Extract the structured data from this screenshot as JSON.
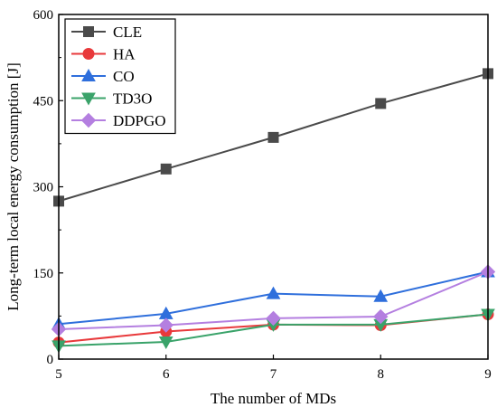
{
  "chart_data": {
    "type": "line",
    "xlabel": "The number of MDs",
    "ylabel": "Long-term local energy consumption [J]",
    "x": [
      5,
      6,
      7,
      8,
      9
    ],
    "xlim": [
      5,
      9
    ],
    "ylim": [
      0,
      600
    ],
    "x_ticks": [
      "5",
      "6",
      "7",
      "8",
      "9"
    ],
    "y_ticks": [
      "0",
      "150",
      "300",
      "450",
      "600"
    ],
    "grid": false,
    "legend_position": "top-left",
    "series": [
      {
        "name": "CLE",
        "color": "#4a4a4a",
        "marker": "square",
        "values": [
          275,
          331,
          386,
          445,
          497
        ]
      },
      {
        "name": "HA",
        "color": "#e8393b",
        "marker": "circle",
        "values": [
          29,
          48,
          60,
          59,
          78
        ]
      },
      {
        "name": "CO",
        "color": "#2f6fdc",
        "marker": "triangle-up",
        "values": [
          61,
          79,
          114,
          109,
          152
        ]
      },
      {
        "name": "TD3O",
        "color": "#3aa36a",
        "marker": "triangle-down",
        "values": [
          23,
          30,
          60,
          60,
          78
        ]
      },
      {
        "name": "DDPGO",
        "color": "#b47fe0",
        "marker": "diamond",
        "values": [
          52,
          59,
          71,
          74,
          152
        ]
      }
    ]
  }
}
